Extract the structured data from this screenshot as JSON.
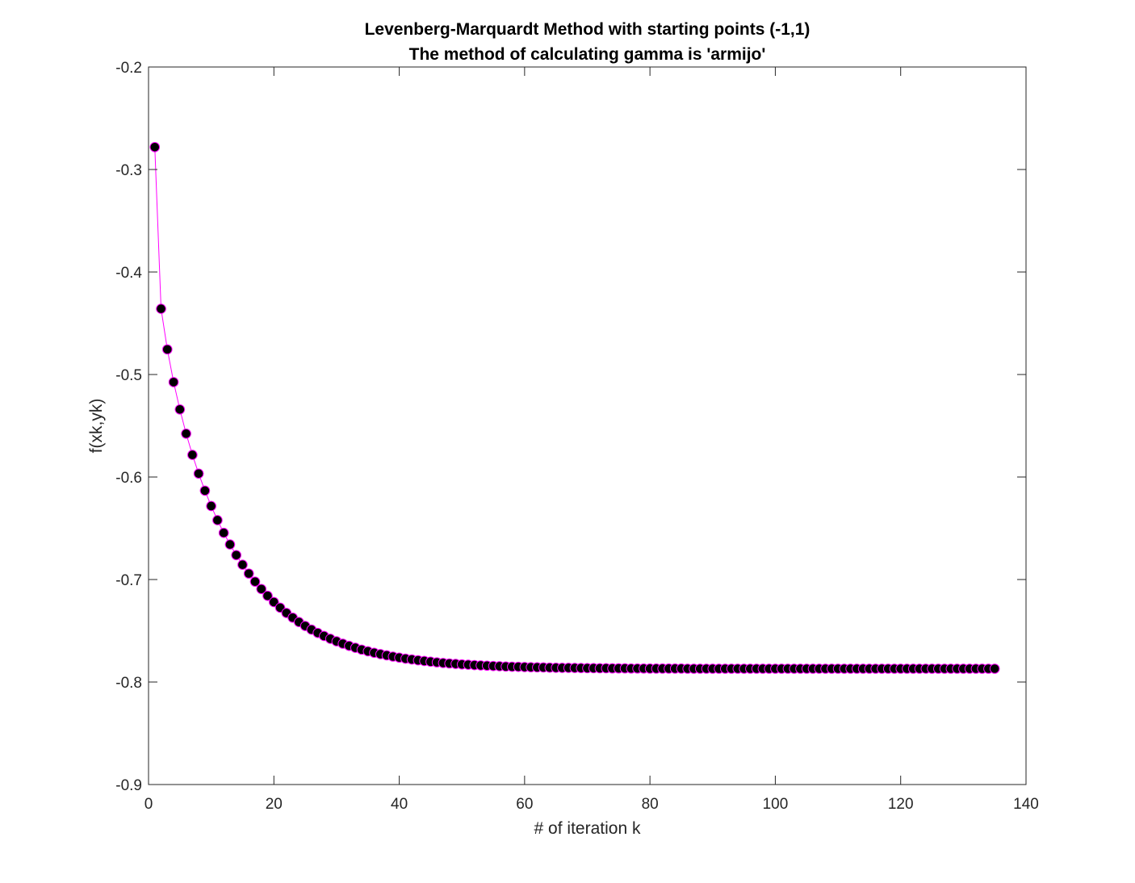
{
  "chart_data": {
    "type": "line",
    "title": "Levenberg-Marquardt Method with starting points (-1,1)",
    "subtitle": "The method of calculating gamma is 'armijo'",
    "xlabel": "# of iteration k",
    "ylabel": "f(xk,yk)",
    "xlim": [
      0,
      140
    ],
    "ylim": [
      -0.9,
      -0.2
    ],
    "xticks": [
      0,
      20,
      40,
      60,
      80,
      100,
      120,
      140
    ],
    "yticks": [
      -0.9,
      -0.8,
      -0.7,
      -0.6,
      -0.5,
      -0.4,
      -0.3,
      -0.2
    ],
    "xtick_labels": [
      "0",
      "20",
      "40",
      "60",
      "80",
      "100",
      "120",
      "140"
    ],
    "ytick_labels": [
      "-0.9",
      "-0.8",
      "-0.7",
      "-0.6",
      "-0.5",
      "-0.4",
      "-0.3",
      "-0.2"
    ],
    "grid": false,
    "box": true,
    "line_color": "#ff00ff",
    "marker_face_color": "#000000",
    "marker_edge_color": "#ff00ff",
    "marker": "circle",
    "x": [
      1,
      2,
      3,
      4,
      5,
      6,
      7,
      8,
      9,
      10,
      11,
      12,
      13,
      14,
      15,
      16,
      17,
      18,
      19,
      20,
      21,
      22,
      23,
      24,
      25,
      26,
      27,
      28,
      29,
      30,
      31,
      32,
      33,
      34,
      35,
      36,
      37,
      38,
      39,
      40,
      41,
      42,
      43,
      44,
      45,
      46,
      47,
      48,
      49,
      50,
      51,
      52,
      53,
      54,
      55,
      56,
      57,
      58,
      59,
      60,
      61,
      62,
      63,
      64,
      65,
      66,
      67,
      68,
      69,
      70,
      71,
      72,
      73,
      74,
      75,
      76,
      77,
      78,
      79,
      80,
      81,
      82,
      83,
      84,
      85,
      86,
      87,
      88,
      89,
      90,
      91,
      92,
      93,
      94,
      95,
      96,
      97,
      98,
      99,
      100,
      101,
      102,
      103,
      104,
      105,
      106,
      107,
      108,
      109,
      110,
      111,
      112,
      113,
      114,
      115,
      116,
      117,
      118,
      119,
      120,
      121,
      122,
      123,
      124,
      125,
      126,
      127,
      128,
      129,
      130,
      131,
      132,
      133,
      134,
      135
    ],
    "y": [
      -0.2782,
      -0.4359,
      -0.4755,
      -0.5074,
      -0.5341,
      -0.5577,
      -0.5784,
      -0.5967,
      -0.6133,
      -0.6283,
      -0.6421,
      -0.6545,
      -0.6658,
      -0.6762,
      -0.6856,
      -0.6942,
      -0.7021,
      -0.7093,
      -0.7159,
      -0.722,
      -0.7275,
      -0.7326,
      -0.7372,
      -0.7415,
      -0.7453,
      -0.7489,
      -0.7521,
      -0.7551,
      -0.7578,
      -0.7603,
      -0.7626,
      -0.7647,
      -0.7666,
      -0.7684,
      -0.77,
      -0.7715,
      -0.7728,
      -0.774,
      -0.7752,
      -0.7762,
      -0.7772,
      -0.778,
      -0.7788,
      -0.7795,
      -0.7802,
      -0.7808,
      -0.7814,
      -0.7819,
      -0.7823,
      -0.7828,
      -0.7831,
      -0.7835,
      -0.7838,
      -0.7841,
      -0.7844,
      -0.7846,
      -0.7849,
      -0.7851,
      -0.7852,
      -0.7854,
      -0.7856,
      -0.7857,
      -0.7858,
      -0.786,
      -0.7861,
      -0.7862,
      -0.7862,
      -0.7863,
      -0.7864,
      -0.7865,
      -0.7865,
      -0.7866,
      -0.7866,
      -0.7867,
      -0.7867,
      -0.7867,
      -0.7868,
      -0.7868,
      -0.7868,
      -0.7869,
      -0.7869,
      -0.7869,
      -0.7869,
      -0.7869,
      -0.7869,
      -0.787,
      -0.787,
      -0.787,
      -0.787,
      -0.787,
      -0.787,
      -0.787,
      -0.787,
      -0.787,
      -0.787,
      -0.787,
      -0.787,
      -0.787,
      -0.787,
      -0.787,
      -0.787,
      -0.787,
      -0.787,
      -0.787,
      -0.787,
      -0.787,
      -0.787,
      -0.787,
      -0.787,
      -0.787,
      -0.787,
      -0.787,
      -0.787,
      -0.787,
      -0.787,
      -0.787,
      -0.787,
      -0.787,
      -0.787,
      -0.787,
      -0.787,
      -0.787,
      -0.787,
      -0.787,
      -0.787,
      -0.787,
      -0.787,
      -0.787,
      -0.787,
      -0.787,
      -0.787,
      -0.787,
      -0.787,
      -0.787,
      -0.787
    ]
  }
}
